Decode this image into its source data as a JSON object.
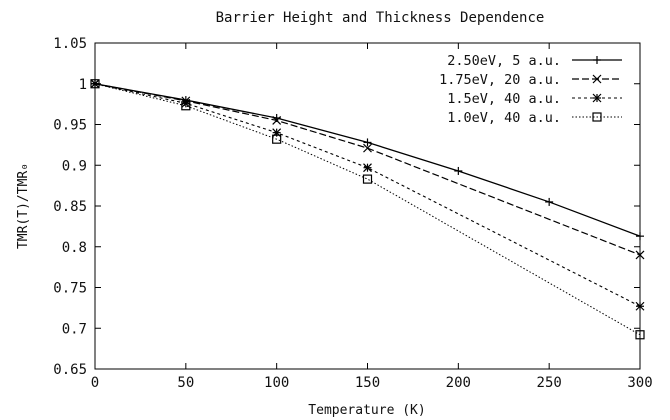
{
  "chart_data": {
    "type": "line",
    "title": "Barrier Height and Thickness Dependence",
    "xlabel": "Temperature (K)",
    "ylabel": "TMR(T)/TMR₀",
    "xlim": [
      0,
      300
    ],
    "ylim": [
      0.65,
      1.05
    ],
    "x_ticks": [
      "0",
      "50",
      "100",
      "150",
      "200",
      "250",
      "300"
    ],
    "y_ticks": [
      "0.65",
      "0.7",
      "0.75",
      "0.8",
      "0.85",
      "0.9",
      "0.95",
      "1",
      "1.05"
    ],
    "grid": false,
    "legend_position": "top-right",
    "series": [
      {
        "name": "2.50eV,  5 a.u.",
        "marker": "plus",
        "dash": "solid",
        "x": [
          0,
          50,
          100,
          150,
          200,
          250,
          300
        ],
        "y": [
          1.0,
          0.98,
          0.958,
          0.928,
          0.893,
          0.855,
          0.813
        ]
      },
      {
        "name": "1.75eV, 20 a.u.",
        "marker": "cross",
        "dash": "dashed",
        "x": [
          0,
          50,
          100,
          150,
          300
        ],
        "y": [
          1.0,
          0.979,
          0.955,
          0.921,
          0.79
        ]
      },
      {
        "name": "1.5eV, 40 a.u.",
        "marker": "star",
        "dash": "dotted",
        "x": [
          0,
          50,
          100,
          150,
          300
        ],
        "y": [
          1.0,
          0.976,
          0.94,
          0.897,
          0.727
        ]
      },
      {
        "name": "1.0eV, 40 a.u.",
        "marker": "square",
        "dash": "finedotted",
        "x": [
          0,
          50,
          100,
          150,
          300
        ],
        "y": [
          1.0,
          0.973,
          0.932,
          0.883,
          0.692
        ]
      }
    ]
  }
}
